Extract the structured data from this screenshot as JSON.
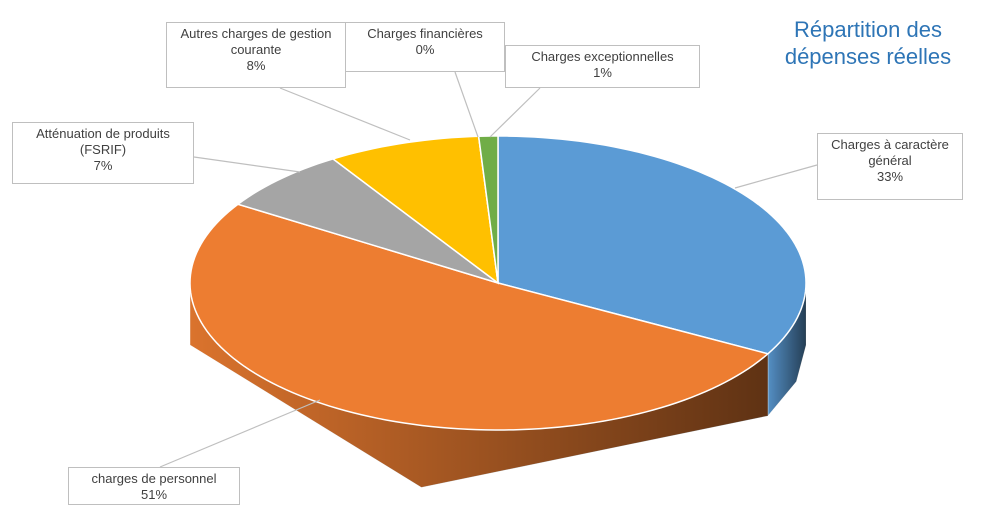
{
  "chart_data": {
    "type": "pie",
    "title": "Répartition des dépenses réelles",
    "categories": [
      "Charges à caractère général",
      "charges de personnel",
      "Atténuation de produits (FSRIF)",
      "Autres charges de gestion courante",
      "Charges financières",
      "Charges exceptionnelles"
    ],
    "values": [
      33,
      51,
      7,
      8,
      0,
      1
    ],
    "value_labels": [
      "33%",
      "51%",
      "7%",
      "8%",
      "0%",
      "1%"
    ],
    "colors": [
      "#5b9bd5",
      "#ed7d31",
      "#a5a5a5",
      "#ffc000",
      "#4472c4",
      "#70ad47"
    ]
  }
}
